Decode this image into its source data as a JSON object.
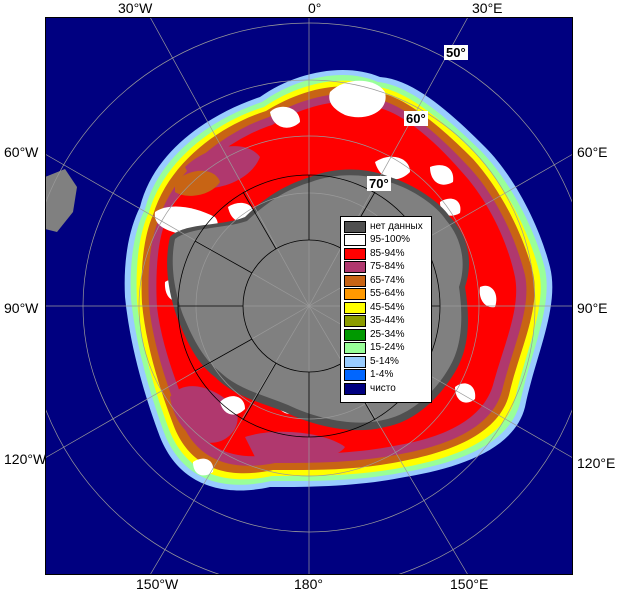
{
  "longitude_labels": {
    "top": [
      "30°W",
      "0°",
      "30°E"
    ],
    "left": [
      "60°W",
      "90°W",
      "120°W"
    ],
    "right": [
      "60°E",
      "90°E",
      "120°E"
    ],
    "bottom": [
      "150°W",
      "180°",
      "150°E"
    ]
  },
  "latitude_labels": [
    "50°",
    "60°",
    "70°"
  ],
  "legend": [
    {
      "label": "нет данных",
      "color": "#505050"
    },
    {
      "label": "95-100%",
      "color": "#ffffff"
    },
    {
      "label": "85-94%",
      "color": "#ff0000"
    },
    {
      "label": "75-84%",
      "color": "#b0386e"
    },
    {
      "label": "65-74%",
      "color": "#c86414"
    },
    {
      "label": "55-64%",
      "color": "#ff9900"
    },
    {
      "label": "45-54%",
      "color": "#ffff00"
    },
    {
      "label": "35-44%",
      "color": "#8c9c00"
    },
    {
      "label": "25-34%",
      "color": "#009900"
    },
    {
      "label": "15-24%",
      "color": "#99ff99"
    },
    {
      "label": "5-14%",
      "color": "#99ccff"
    },
    {
      "label": "1-4%",
      "color": "#0066ff"
    },
    {
      "label": "чисто",
      "color": "#000080"
    }
  ],
  "colors": {
    "ocean": "#000080",
    "land": "#808080",
    "land_dark": "#505050",
    "grid": "#9a9a9a",
    "ice_high": "#ff0000",
    "ice_mid": "#b0386e",
    "ice_full": "#ffffff"
  }
}
